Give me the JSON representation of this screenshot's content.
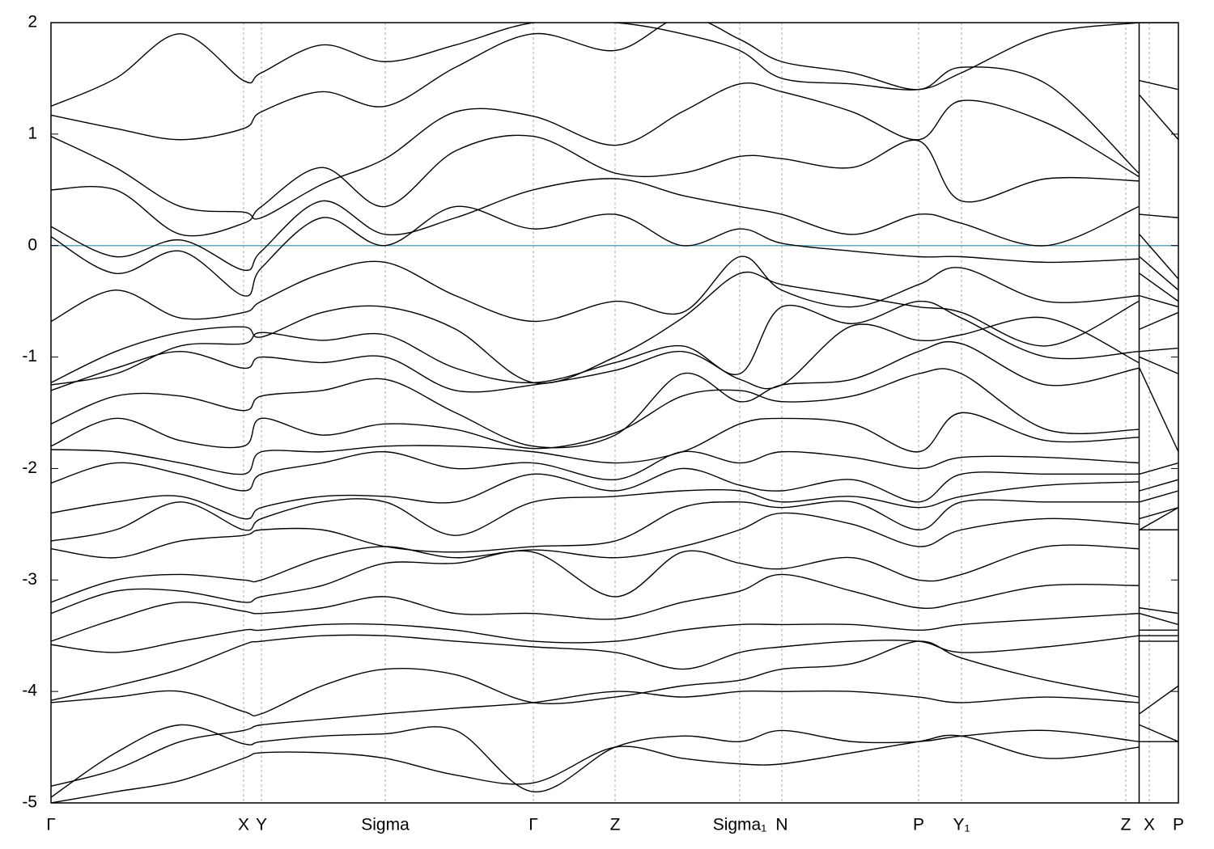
{
  "chart_data": {
    "type": "line",
    "x": [
      0,
      0.8,
      1.6,
      2.38,
      2.6,
      3.35,
      4.13,
      5.0,
      5.96,
      6.97,
      7.8,
      8.51,
      9.03,
      9.9,
      10.72,
      11.25,
      12.3,
      13.44,
      13.445,
      13.45,
      13.93
    ],
    "xlim": [
      0,
      13.93
    ],
    "xticks": [
      {
        "value": 0,
        "label": "Γ"
      },
      {
        "value": 2.38,
        "label": "X"
      },
      {
        "value": 2.6,
        "label": "Y"
      },
      {
        "value": 4.13,
        "label": "Sigma"
      },
      {
        "value": 5.96,
        "label": "Γ"
      },
      {
        "value": 6.97,
        "label": "Z"
      },
      {
        "value": 8.51,
        "label": "Sigma₁"
      },
      {
        "value": 9.03,
        "label": "N"
      },
      {
        "value": 10.72,
        "label": "P"
      },
      {
        "value": 11.25,
        "label": "Y₁"
      },
      {
        "value": 13.28,
        "label": "Z"
      },
      {
        "value": 13.57,
        "label": "X"
      },
      {
        "value": 13.93,
        "label": "P"
      }
    ],
    "ylim": [
      -5,
      2
    ],
    "yticks": [
      -5,
      -4,
      -3,
      -2,
      -1,
      0,
      1,
      2
    ],
    "xgrid": true,
    "reference_line": {
      "value": 0,
      "color": "#5fa8c0"
    },
    "series": [
      {
        "color": "#000000",
        "values": [
          1.25,
          1.5,
          1.9,
          1.48,
          1.55,
          1.8,
          1.65,
          1.8,
          2.0,
          2.0,
          1.9,
          1.75,
          1.5,
          1.45,
          1.4,
          1.55,
          1.9,
          2.0,
          null,
          2.0,
          2.0
        ]
      },
      {
        "color": "#000000",
        "values": [
          1.17,
          1.05,
          0.95,
          1.05,
          1.2,
          1.38,
          1.25,
          1.6,
          1.9,
          1.75,
          2.05,
          1.85,
          1.65,
          1.55,
          1.4,
          1.6,
          1.45,
          0.65,
          null,
          1.48,
          1.4
        ]
      },
      {
        "color": "#000000",
        "values": [
          0.98,
          0.7,
          0.35,
          0.3,
          0.25,
          0.55,
          0.78,
          1.2,
          1.16,
          0.9,
          1.2,
          1.45,
          1.38,
          1.2,
          0.95,
          1.3,
          1.1,
          0.62,
          null,
          1.35,
          0.95
        ]
      },
      {
        "color": "#000000",
        "values": [
          0.5,
          0.5,
          0.1,
          0.2,
          0.35,
          0.7,
          0.35,
          0.85,
          0.98,
          0.65,
          0.65,
          0.8,
          0.78,
          0.7,
          0.94,
          0.4,
          0.6,
          0.58,
          null,
          0.28,
          0.25
        ]
      },
      {
        "color": "#000000",
        "values": [
          0.17,
          -0.1,
          0.05,
          -0.22,
          -0.05,
          0.4,
          0.1,
          0.25,
          0.5,
          0.6,
          0.45,
          0.35,
          0.28,
          0.1,
          0.28,
          0.2,
          0.0,
          0.35,
          null,
          0.1,
          -0.3
        ]
      },
      {
        "color": "#000000",
        "values": [
          0.08,
          -0.25,
          -0.05,
          -0.45,
          -0.2,
          0.25,
          0.0,
          0.35,
          0.15,
          0.28,
          0.0,
          0.15,
          0.02,
          -0.05,
          -0.1,
          -0.1,
          -0.15,
          -0.12,
          null,
          -0.1,
          -0.4
        ]
      },
      {
        "color": "#000000",
        "values": [
          -0.68,
          -0.4,
          -0.65,
          -0.6,
          -0.5,
          -0.25,
          -0.15,
          -0.45,
          -0.68,
          -0.5,
          -0.6,
          -0.1,
          -0.4,
          -0.55,
          -0.35,
          -0.2,
          -0.5,
          -0.45,
          null,
          -0.25,
          -0.5
        ]
      },
      {
        "color": "#000000",
        "values": [
          -1.23,
          -0.95,
          -0.78,
          -0.73,
          -0.82,
          -0.6,
          -0.55,
          -0.75,
          -1.23,
          -1.0,
          -0.65,
          -0.25,
          -0.35,
          -0.45,
          -0.55,
          -0.6,
          -0.9,
          -0.5,
          null,
          -0.45,
          -0.55
        ]
      },
      {
        "color": "#000000",
        "values": [
          -1.25,
          -1.15,
          -0.9,
          -0.88,
          -0.78,
          -0.85,
          -0.8,
          -1.1,
          -1.23,
          -1.05,
          -0.9,
          -1.15,
          -0.55,
          -0.7,
          -0.5,
          -0.65,
          -1.0,
          -0.95,
          null,
          -0.75,
          -0.6
        ]
      },
      {
        "color": "#000000",
        "values": [
          -1.3,
          -1.1,
          -0.95,
          -1.1,
          -1.0,
          -1.05,
          -1.0,
          -1.3,
          -1.25,
          -1.12,
          -0.95,
          -1.2,
          -1.25,
          -0.72,
          -0.85,
          -0.8,
          -0.65,
          -1.05,
          null,
          -0.95,
          -0.92
        ]
      },
      {
        "color": "#000000",
        "values": [
          -1.6,
          -1.35,
          -1.35,
          -1.48,
          -1.35,
          -1.3,
          -1.2,
          -1.5,
          -1.8,
          -1.7,
          -1.15,
          -1.4,
          -1.25,
          -1.2,
          -0.95,
          -0.88,
          -1.25,
          -1.1,
          null,
          -1.0,
          -1.15
        ]
      },
      {
        "color": "#000000",
        "values": [
          -1.8,
          -1.55,
          -1.75,
          -1.8,
          -1.55,
          -1.7,
          -1.6,
          -1.65,
          -1.82,
          -1.68,
          -1.35,
          -1.3,
          -1.4,
          -1.35,
          -1.15,
          -1.15,
          -1.65,
          -1.65,
          null,
          -1.1,
          -1.85
        ]
      },
      {
        "color": "#000000",
        "values": [
          -1.83,
          -1.85,
          -1.95,
          -2.05,
          -1.85,
          -1.85,
          -1.8,
          -1.8,
          -1.85,
          -1.95,
          -1.85,
          -1.6,
          -1.55,
          -1.6,
          -1.85,
          -1.5,
          -1.75,
          -1.72,
          null,
          -2.05,
          -1.95
        ]
      },
      {
        "color": "#000000",
        "values": [
          -2.13,
          -1.95,
          -2.05,
          -2.2,
          -2.05,
          -1.95,
          -1.85,
          -2.0,
          -1.95,
          -2.1,
          -1.85,
          -1.95,
          -1.85,
          -1.9,
          -2.0,
          -1.9,
          -1.9,
          -1.95,
          null,
          -2.2,
          -2.1
        ]
      },
      {
        "color": "#000000",
        "values": [
          -2.4,
          -2.3,
          -2.25,
          -2.45,
          -2.35,
          -2.25,
          -2.25,
          -2.3,
          -2.05,
          -2.2,
          -2.0,
          -2.15,
          -2.2,
          -2.1,
          -2.3,
          -2.05,
          -2.05,
          -2.05,
          null,
          -2.3,
          -2.2
        ]
      },
      {
        "color": "#000000",
        "values": [
          -2.65,
          -2.55,
          -2.3,
          -2.55,
          -2.45,
          -2.3,
          -2.3,
          -2.6,
          -2.3,
          -2.25,
          -2.2,
          -2.2,
          -2.3,
          -2.25,
          -2.35,
          -2.25,
          -2.15,
          -2.12,
          null,
          -2.45,
          -2.35
        ]
      },
      {
        "color": "#000000",
        "values": [
          -2.72,
          -2.8,
          -2.65,
          -2.6,
          -2.55,
          -2.55,
          -2.7,
          -2.75,
          -2.7,
          -2.65,
          -2.35,
          -2.3,
          -2.35,
          -2.3,
          -2.55,
          -2.3,
          -2.3,
          -2.3,
          null,
          -2.55,
          -2.35
        ]
      },
      {
        "color": "#000000",
        "values": [
          -3.2,
          -3.0,
          -2.95,
          -3.0,
          -3.0,
          -2.8,
          -2.7,
          -2.8,
          -2.73,
          -2.8,
          -2.7,
          -2.55,
          -2.4,
          -2.5,
          -2.7,
          -2.55,
          -2.45,
          -2.5,
          null,
          -2.55,
          -2.55
        ]
      },
      {
        "color": "#000000",
        "values": [
          -3.3,
          -3.1,
          -3.1,
          -3.2,
          -3.15,
          -3.05,
          -2.85,
          -2.85,
          -2.75,
          -3.15,
          -2.75,
          -2.85,
          -2.9,
          -2.8,
          -3.0,
          -2.95,
          -2.7,
          -2.72,
          null,
          -3.25,
          -3.3
        ]
      },
      {
        "color": "#000000",
        "values": [
          -3.55,
          -3.35,
          -3.2,
          -3.28,
          -3.3,
          -3.25,
          -3.15,
          -3.3,
          -3.3,
          -3.35,
          -3.2,
          -3.1,
          -2.95,
          -3.1,
          -3.25,
          -3.2,
          -3.05,
          -3.05,
          null,
          -3.3,
          -3.4
        ]
      },
      {
        "color": "#000000",
        "values": [
          -3.58,
          -3.65,
          -3.55,
          -3.45,
          -3.45,
          -3.4,
          -3.4,
          -3.45,
          -3.55,
          -3.55,
          -3.45,
          -3.4,
          -3.4,
          -3.4,
          -3.45,
          -3.4,
          -3.35,
          -3.3,
          null,
          -3.45,
          -3.45
        ]
      },
      {
        "color": "#000000",
        "values": [
          -4.08,
          -3.95,
          -3.8,
          -3.58,
          -3.55,
          -3.5,
          -3.5,
          -3.55,
          -3.6,
          -3.65,
          -3.8,
          -3.65,
          -3.6,
          -3.55,
          -3.55,
          -3.65,
          -3.6,
          -3.5,
          null,
          -3.5,
          -3.5
        ]
      },
      {
        "color": "#000000",
        "values": [
          -4.1,
          -4.05,
          -4.0,
          -4.18,
          -4.2,
          -3.95,
          -3.8,
          -3.85,
          -4.1,
          -4.05,
          -3.95,
          -3.9,
          -3.8,
          -3.75,
          -3.55,
          -3.7,
          -3.9,
          -4.05,
          null,
          -3.55,
          -3.55
        ]
      },
      {
        "color": "#000000",
        "values": [
          -4.85,
          -4.7,
          -4.45,
          -4.35,
          -4.3,
          -4.25,
          -4.2,
          -4.15,
          -4.1,
          -4.0,
          -4.05,
          -4.0,
          -4.0,
          -4.0,
          -4.05,
          -4.1,
          -4.05,
          -4.1,
          null,
          -4.2,
          -3.95
        ]
      },
      {
        "color": "#000000",
        "values": [
          -4.95,
          -4.55,
          -4.3,
          -4.47,
          -4.45,
          -4.4,
          -4.38,
          -4.35,
          -4.9,
          -4.5,
          -4.4,
          -4.45,
          -4.35,
          -4.45,
          -4.45,
          -4.4,
          -4.35,
          -4.45,
          null,
          -4.3,
          -4.45
        ]
      },
      {
        "color": "#000000",
        "values": [
          -5.0,
          -4.9,
          -4.8,
          -4.6,
          -4.55,
          -4.55,
          -4.6,
          -4.75,
          -4.82,
          -4.5,
          -4.6,
          -4.65,
          -4.65,
          -4.55,
          -4.45,
          -4.4,
          -4.6,
          -4.5,
          null,
          -4.45,
          -4.45
        ]
      }
    ]
  }
}
